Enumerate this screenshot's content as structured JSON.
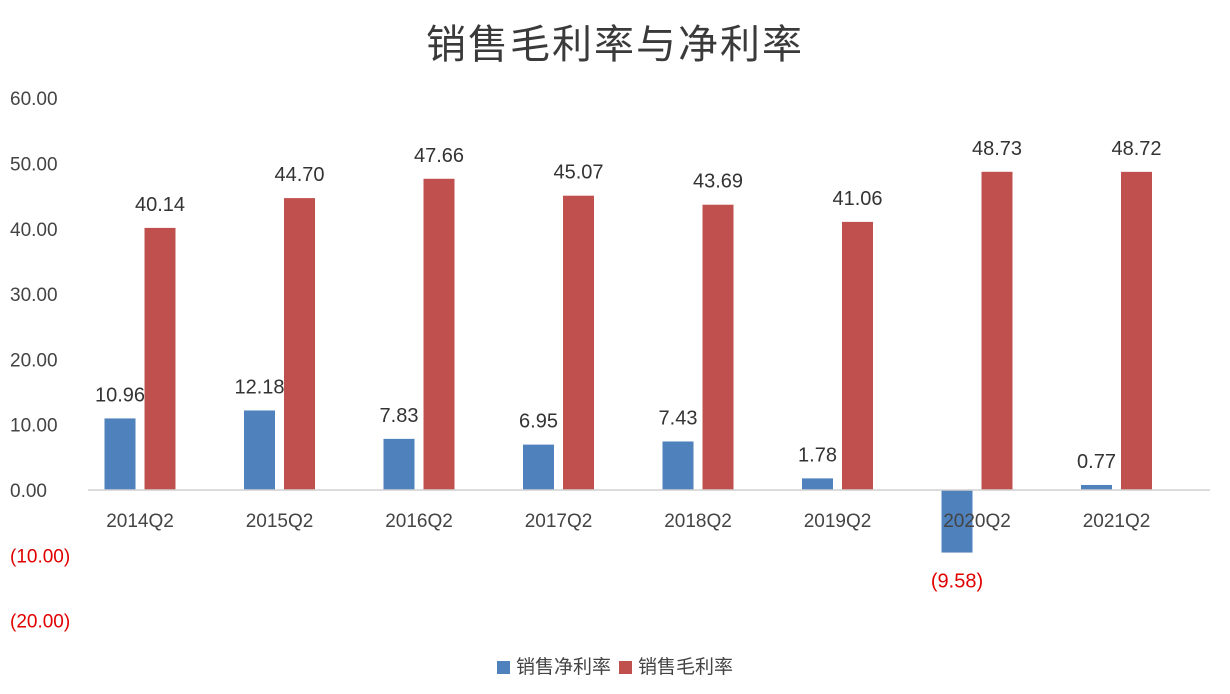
{
  "chart_data": {
    "type": "bar",
    "title": "销售毛利率与净利率",
    "categories": [
      "2014Q2",
      "2015Q2",
      "2016Q2",
      "2017Q2",
      "2018Q2",
      "2019Q2",
      "2020Q2",
      "2021Q2"
    ],
    "series": [
      {
        "name": "销售净利率",
        "color": "#4f81bd",
        "values": [
          10.96,
          12.18,
          7.83,
          6.95,
          7.43,
          1.78,
          -9.58,
          0.77
        ],
        "labels": [
          "10.96",
          "12.18",
          "7.83",
          "6.95",
          "7.43",
          "1.78",
          "(9.58)",
          "0.77"
        ]
      },
      {
        "name": "销售毛利率",
        "color": "#c0504d",
        "values": [
          40.14,
          44.7,
          47.66,
          45.07,
          43.69,
          41.06,
          48.73,
          48.72
        ],
        "labels": [
          "40.14",
          "44.70",
          "47.66",
          "45.07",
          "43.69",
          "41.06",
          "48.73",
          "48.72"
        ]
      }
    ],
    "yticks": [
      60,
      50,
      40,
      30,
      20,
      10,
      0,
      -10,
      -20
    ],
    "ytick_labels": [
      "60.00",
      "50.00",
      "40.00",
      "30.00",
      "20.00",
      "10.00",
      "0.00",
      "(10.00)",
      "(20.00)"
    ],
    "negative_color": "#e00000",
    "ylim": [
      -20,
      60
    ],
    "grid": false,
    "legend_position": "bottom"
  }
}
